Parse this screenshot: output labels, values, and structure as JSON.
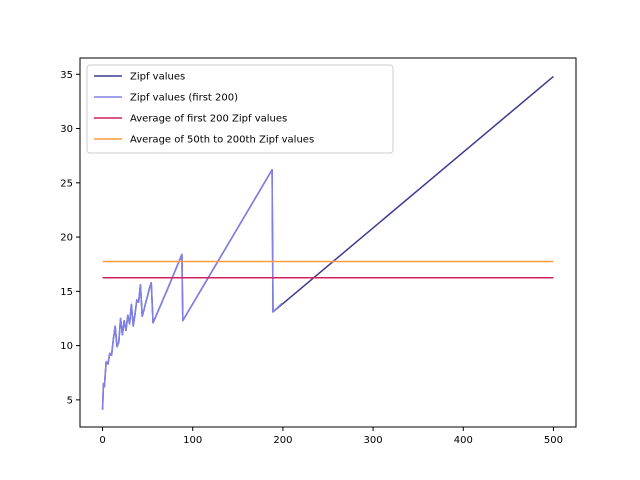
{
  "chart_data": {
    "type": "line",
    "title": "",
    "xlabel": "",
    "ylabel": "",
    "xlim": [
      -25,
      525
    ],
    "ylim": [
      2.5,
      36.5
    ],
    "x_ticks": [
      0,
      100,
      200,
      300,
      400,
      500
    ],
    "y_ticks": [
      5,
      10,
      15,
      20,
      25,
      30,
      35
    ],
    "grid": false,
    "legend_position": "upper-left",
    "series": [
      {
        "name": "Zipf values",
        "color": "#3b3b8f",
        "x": [
          0,
          1,
          2,
          4,
          6,
          8,
          10,
          12,
          14,
          16,
          18,
          20,
          22,
          24,
          26,
          28,
          30,
          32,
          34,
          36,
          38,
          40,
          42,
          44,
          46,
          48,
          50,
          52,
          54,
          56,
          72,
          88,
          89,
          188,
          189,
          500
        ],
        "y": [
          4.1,
          6.5,
          6.2,
          8.5,
          8.3,
          9.3,
          9.1,
          10.6,
          11.8,
          9.9,
          10.3,
          12.5,
          11.0,
          12.3,
          11.4,
          12.8,
          12.0,
          13.8,
          11.8,
          12.9,
          14.2,
          14.0,
          15.6,
          12.7,
          13.3,
          14.0,
          14.6,
          15.3,
          15.8,
          12.1,
          15.2,
          18.4,
          12.3,
          26.2,
          13.1,
          34.8
        ]
      },
      {
        "name": "Zipf values (first 200)",
        "color": "#8080e8",
        "x": [
          0,
          1,
          2,
          4,
          6,
          8,
          10,
          12,
          14,
          16,
          18,
          20,
          22,
          24,
          26,
          28,
          30,
          32,
          34,
          36,
          38,
          40,
          42,
          44,
          46,
          48,
          50,
          52,
          54,
          56,
          72,
          88,
          89,
          188,
          189,
          199
        ],
        "y": [
          4.1,
          6.5,
          6.2,
          8.5,
          8.3,
          9.3,
          9.1,
          10.6,
          11.8,
          9.9,
          10.3,
          12.5,
          11.0,
          12.3,
          11.4,
          12.8,
          12.0,
          13.8,
          11.8,
          12.9,
          14.2,
          14.0,
          15.6,
          12.7,
          13.3,
          14.0,
          14.6,
          15.3,
          15.8,
          12.1,
          15.2,
          18.4,
          12.3,
          26.2,
          13.1,
          13.9
        ]
      },
      {
        "name": "Average of first 200 Zipf values",
        "color": "#d0205e",
        "x": [
          0,
          500
        ],
        "y": [
          16.25,
          16.25
        ]
      },
      {
        "name": "Average of 50th to 200th Zipf values",
        "color": "#ff9a40",
        "x": [
          0,
          500
        ],
        "y": [
          17.75,
          17.75
        ]
      }
    ]
  }
}
